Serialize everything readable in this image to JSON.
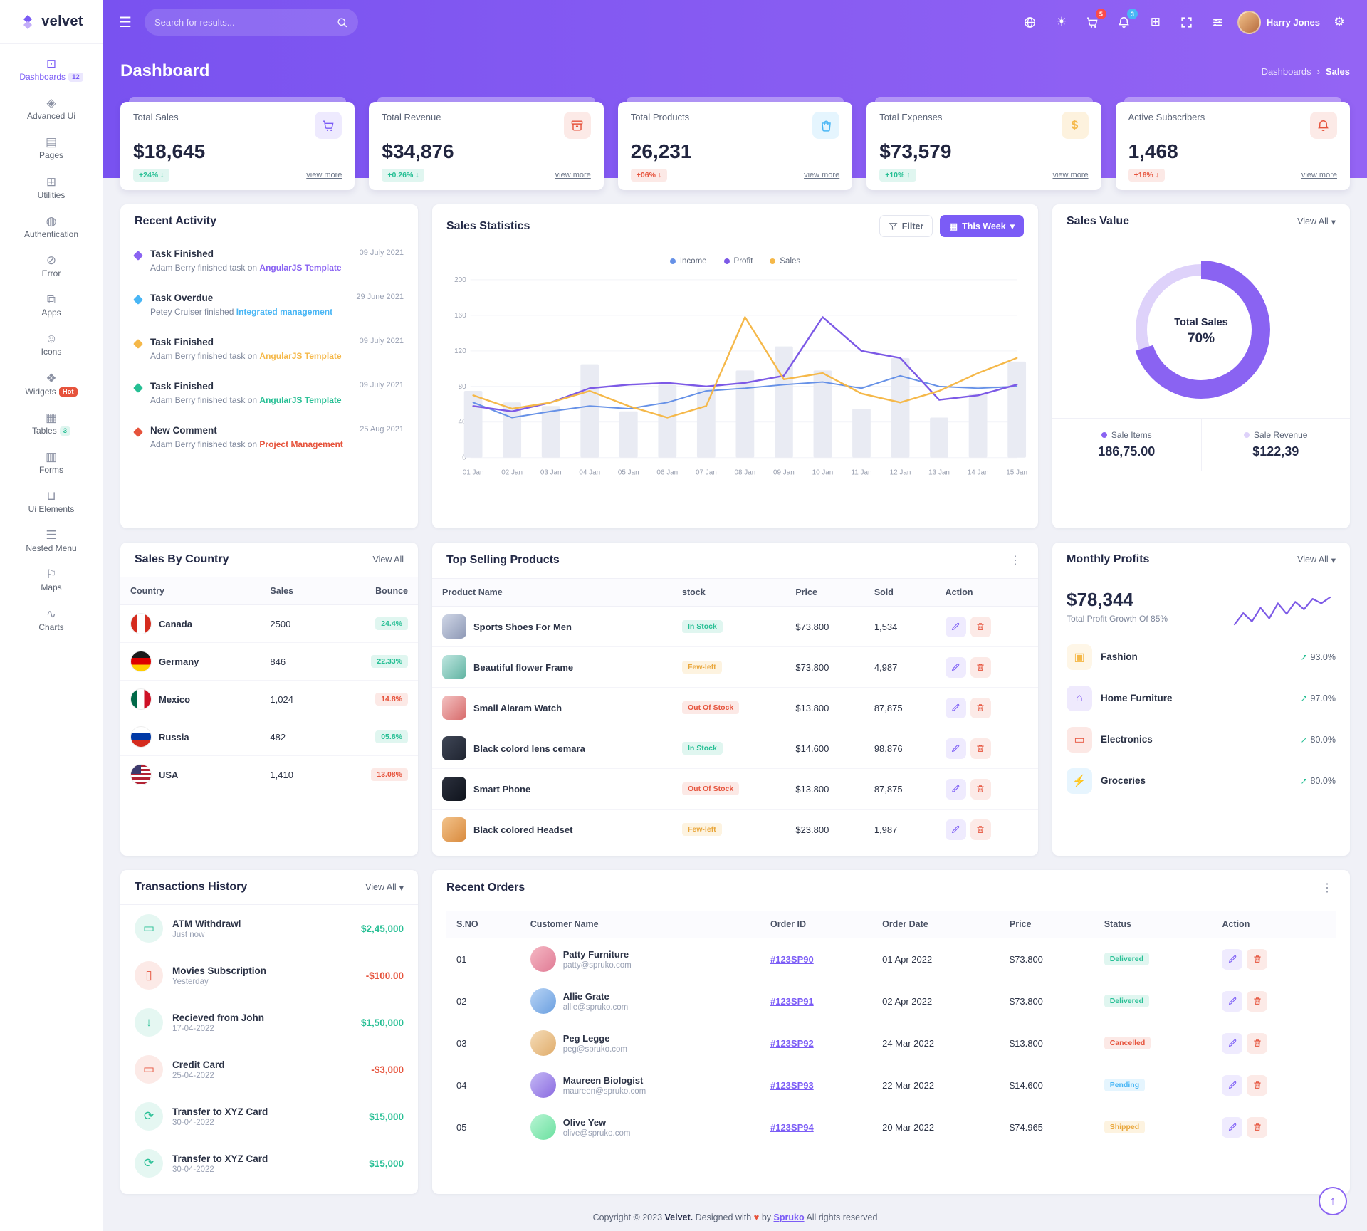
{
  "colors": {
    "primary": "#7b5cf6",
    "success": "#26bf94",
    "danger": "#e6533c",
    "warning": "#f5b849",
    "info": "#49b6f5"
  },
  "ui": {
    "chevron_down": "▾",
    "kebab": "⋮",
    "breadcrumb_sep": "›",
    "scroll_top_arrow": "↑"
  },
  "brand": {
    "name": "velvet"
  },
  "header": {
    "search_placeholder": "Search for results...",
    "cart_badge": "5",
    "bell_badge": "3",
    "user_name": "Harry Jones"
  },
  "page": {
    "title": "Dashboard",
    "breadcrumb_parent": "Dashboards",
    "breadcrumb_current": "Sales"
  },
  "sidebar": {
    "items": [
      {
        "icon": "⊡",
        "label": "Dashboards",
        "badge": "12"
      },
      {
        "icon": "◈",
        "label": "Advanced Ui",
        "badge": ""
      },
      {
        "icon": "▤",
        "label": "Pages",
        "badge": ""
      },
      {
        "icon": "⊞",
        "label": "Utilities",
        "badge": ""
      },
      {
        "icon": "◍",
        "label": "Authentication",
        "badge": ""
      },
      {
        "icon": "⊘",
        "label": "Error",
        "badge": ""
      },
      {
        "icon": "⧉",
        "label": "Apps",
        "badge": ""
      },
      {
        "icon": "☺",
        "label": "Icons",
        "badge": ""
      },
      {
        "icon": "❖",
        "label": "Widgets",
        "badge": "Hot"
      },
      {
        "icon": "▦",
        "label": "Tables",
        "badge": "3"
      },
      {
        "icon": "▥",
        "label": "Forms",
        "badge": ""
      },
      {
        "icon": "⊔",
        "label": "Ui Elements",
        "badge": ""
      },
      {
        "icon": "☰",
        "label": "Nested Menu",
        "badge": ""
      },
      {
        "icon": "⚐",
        "label": "Maps",
        "badge": ""
      },
      {
        "icon": "∿",
        "label": "Charts",
        "badge": ""
      }
    ]
  },
  "stats": [
    {
      "label": "Total Sales",
      "value": "$18,645",
      "delta": "+24%",
      "arrow": "↓",
      "tone": "success",
      "view_more": "view more",
      "icon": "cart-icon"
    },
    {
      "label": "Total Revenue",
      "value": "$34,876",
      "delta": "+0.26%",
      "arrow": "↓",
      "tone": "success",
      "view_more": "view more",
      "icon": "archive-icon"
    },
    {
      "label": "Total Products",
      "value": "26,231",
      "delta": "+06%",
      "arrow": "↓",
      "tone": "danger",
      "view_more": "view more",
      "icon": "shopping-bag-icon"
    },
    {
      "label": "Total Expenses",
      "value": "$73,579",
      "delta": "+10%",
      "arrow": "↑",
      "tone": "success",
      "view_more": "view more",
      "icon": "dollar-icon"
    },
    {
      "label": "Active Subscribers",
      "value": "1,468",
      "delta": "+16%",
      "arrow": "↓",
      "tone": "danger",
      "view_more": "view more",
      "icon": "bell-icon"
    }
  ],
  "recent_activity": {
    "title": "Recent Activity",
    "items": [
      {
        "title": "Task Finished",
        "text": "Adam Berry finished task on",
        "link": "AngularJS Template",
        "date": "09 July 2021",
        "color": "#8a63f2"
      },
      {
        "title": "Task Overdue",
        "text": "Petey Cruiser finished",
        "link": "Integrated management",
        "date": "29 June 2021",
        "color": "#49b6f5"
      },
      {
        "title": "Task Finished",
        "text": "Adam Berry finished task on",
        "link": "AngularJS Template",
        "date": "09 July 2021",
        "color": "#f5b849"
      },
      {
        "title": "Task Finished",
        "text": "Adam Berry finished task on",
        "link": "AngularJS Template",
        "date": "09 July 2021",
        "color": "#26bf94"
      },
      {
        "title": "New Comment",
        "text": "Adam Berry finished task on",
        "link": "Project Management",
        "date": "25 Aug 2021",
        "color": "#e6533c"
      }
    ]
  },
  "sales_statistics": {
    "title": "Sales Statistics",
    "filter_label": "Filter",
    "range_label": "This Week"
  },
  "chart_data": [
    {
      "id": "sales-statistics",
      "type": "line",
      "title": "Sales Statistics",
      "x": [
        "01 Jan",
        "02 Jan",
        "03 Jan",
        "04 Jan",
        "05 Jan",
        "06 Jan",
        "07 Jan",
        "08 Jan",
        "09 Jan",
        "10 Jan",
        "11 Jan",
        "12 Jan",
        "13 Jan",
        "14 Jan",
        "15 Jan"
      ],
      "ylim": [
        0,
        200
      ],
      "yticks": [
        0,
        40,
        80,
        120,
        160,
        200
      ],
      "legend_position": "top",
      "series": [
        {
          "name": "Income",
          "color": "#6691e7",
          "values": [
            62,
            45,
            52,
            58,
            55,
            62,
            75,
            78,
            82,
            85,
            78,
            92,
            80,
            78,
            80
          ]
        },
        {
          "name": "Profit",
          "color": "#7c59e6",
          "values": [
            58,
            52,
            62,
            78,
            82,
            84,
            80,
            84,
            92,
            158,
            120,
            112,
            65,
            70,
            82
          ]
        },
        {
          "name": "Sales",
          "color": "#f5b849",
          "values": [
            70,
            55,
            62,
            75,
            58,
            45,
            58,
            158,
            88,
            95,
            72,
            62,
            75,
            95,
            112
          ]
        }
      ],
      "background_bars": {
        "color": "#e9ebf3",
        "values": [
          75,
          62,
          58,
          105,
          52,
          82,
          78,
          98,
          125,
          98,
          55,
          112,
          45,
          72,
          108
        ]
      }
    },
    {
      "id": "sales-value-donut",
      "type": "pie",
      "center_label": "Total Sales",
      "center_value": "70%",
      "slices": [
        {
          "label": "Sale Items",
          "value": 70,
          "color": "#8a63f2"
        },
        {
          "label": "Sale Revenue",
          "value": 30,
          "color": "#ded2fa"
        }
      ]
    },
    {
      "id": "monthly-profits-sparkline",
      "type": "line",
      "series": [
        {
          "name": "Profit trend",
          "color": "#7c59e6",
          "values": [
            30,
            45,
            34,
            52,
            38,
            58,
            44,
            60,
            50,
            64,
            58,
            66
          ]
        }
      ]
    }
  ],
  "sales_value": {
    "title": "Sales Value",
    "view_all": "View All",
    "items": [
      {
        "label": "Sale Items",
        "value": "186,75.00"
      },
      {
        "label": "Sale Revenue",
        "value": "$122,39"
      }
    ]
  },
  "sales_by_country": {
    "title": "Sales By Country",
    "view_all": "View All",
    "columns": [
      "Country",
      "Sales",
      "Bounce"
    ],
    "rows": [
      {
        "country": "Canada",
        "sales": "2500",
        "bounce": "24.4%",
        "tone": "success"
      },
      {
        "country": "Germany",
        "sales": "846",
        "bounce": "22.33%",
        "tone": "success"
      },
      {
        "country": "Mexico",
        "sales": "1,024",
        "bounce": "14.8%",
        "tone": "danger"
      },
      {
        "country": "Russia",
        "sales": "482",
        "bounce": "05.8%",
        "tone": "success"
      },
      {
        "country": "USA",
        "sales": "1,410",
        "bounce": "13.08%",
        "tone": "danger"
      }
    ]
  },
  "top_products": {
    "title": "Top Selling Products",
    "columns": [
      "Product Name",
      "stock",
      "Price",
      "Sold",
      "Action"
    ],
    "rows": [
      {
        "name": "Sports Shoes For Men",
        "stock": "In Stock",
        "stock_tone": "success",
        "price": "$73.800",
        "sold": "1,534"
      },
      {
        "name": "Beautiful flower Frame",
        "stock": "Few-left",
        "stock_tone": "warning",
        "price": "$73.800",
        "sold": "4,987"
      },
      {
        "name": "Small Alaram Watch",
        "stock": "Out Of Stock",
        "stock_tone": "danger",
        "price": "$13.800",
        "sold": "87,875"
      },
      {
        "name": "Black colord lens cemara",
        "stock": "In Stock",
        "stock_tone": "success",
        "price": "$14.600",
        "sold": "98,876"
      },
      {
        "name": "Smart Phone",
        "stock": "Out Of Stock",
        "stock_tone": "danger",
        "price": "$13.800",
        "sold": "87,875"
      },
      {
        "name": "Black colored Headset",
        "stock": "Few-left",
        "stock_tone": "warning",
        "price": "$23.800",
        "sold": "1,987"
      }
    ]
  },
  "monthly_profits": {
    "title": "Monthly Profits",
    "view_all": "View All",
    "amount": "$78,344",
    "subtitle": "Total Profit Growth Of 85%",
    "trend_arrow": "↗",
    "categories": [
      {
        "icon": "▣",
        "label": "Fashion",
        "value": "93.0%",
        "pct": 93,
        "color": "#f5b849"
      },
      {
        "icon": "⌂",
        "label": "Home Furniture",
        "value": "97.0%",
        "pct": 97,
        "color": "#8a63f2"
      },
      {
        "icon": "▭",
        "label": "Electronics",
        "value": "80.0%",
        "pct": 80,
        "color": "#e6533c"
      },
      {
        "icon": "⚡",
        "label": "Groceries",
        "value": "80.0%",
        "pct": 80,
        "color": "#49b6f5"
      }
    ]
  },
  "transactions": {
    "title": "Transactions History",
    "view_all": "View All",
    "items": [
      {
        "icon": "▭",
        "name": "ATM Withdrawl",
        "time": "Just now",
        "amount": "$2,45,000",
        "tone": "success",
        "icon_color": "#26bf94"
      },
      {
        "icon": "▯",
        "name": "Movies Subscription",
        "time": "Yesterday",
        "amount": "-$100.00",
        "tone": "danger",
        "icon_color": "#e6533c"
      },
      {
        "icon": "↓",
        "name": "Recieved from John",
        "time": "17-04-2022",
        "amount": "$1,50,000",
        "tone": "success",
        "icon_color": "#26bf94"
      },
      {
        "icon": "▭",
        "name": "Credit Card",
        "time": "25-04-2022",
        "amount": "-$3,000",
        "tone": "danger",
        "icon_color": "#e6533c"
      },
      {
        "icon": "⟳",
        "name": "Transfer to XYZ Card",
        "time": "30-04-2022",
        "amount": "$15,000",
        "tone": "success",
        "icon_color": "#26bf94"
      },
      {
        "icon": "⟳",
        "name": "Transfer to XYZ Card",
        "time": "30-04-2022",
        "amount": "$15,000",
        "tone": "success",
        "icon_color": "#26bf94"
      }
    ]
  },
  "recent_orders": {
    "title": "Recent Orders",
    "columns": [
      "S.NO",
      "Customer Name",
      "Order ID",
      "Order Date",
      "Price",
      "Status",
      "Action"
    ],
    "rows": [
      {
        "sno": "01",
        "name": "Patty Furniture",
        "email": "patty@spruko.com",
        "order_id": "#123SP90",
        "date": "01 Apr 2022",
        "price": "$73.800",
        "status": "Delivered",
        "status_tone": "success"
      },
      {
        "sno": "02",
        "name": "Allie Grate",
        "email": "allie@spruko.com",
        "order_id": "#123SP91",
        "date": "02 Apr 2022",
        "price": "$73.800",
        "status": "Delivered",
        "status_tone": "success"
      },
      {
        "sno": "03",
        "name": "Peg Legge",
        "email": "peg@spruko.com",
        "order_id": "#123SP92",
        "date": "24 Mar 2022",
        "price": "$13.800",
        "status": "Cancelled",
        "status_tone": "danger"
      },
      {
        "sno": "04",
        "name": "Maureen Biologist",
        "email": "maureen@spruko.com",
        "order_id": "#123SP93",
        "date": "22 Mar 2022",
        "price": "$14.600",
        "status": "Pending",
        "status_tone": "info"
      },
      {
        "sno": "05",
        "name": "Olive Yew",
        "email": "olive@spruko.com",
        "order_id": "#123SP94",
        "date": "20 Mar 2022",
        "price": "$74.965",
        "status": "Shipped",
        "status_tone": "warning"
      }
    ]
  },
  "footer": {
    "copyright": "Copyright © 2023",
    "brand": "Velvet.",
    "designed": "Designed with",
    "heart": "♥",
    "by": "by",
    "designer": "Spruko",
    "rights": "All rights reserved"
  }
}
